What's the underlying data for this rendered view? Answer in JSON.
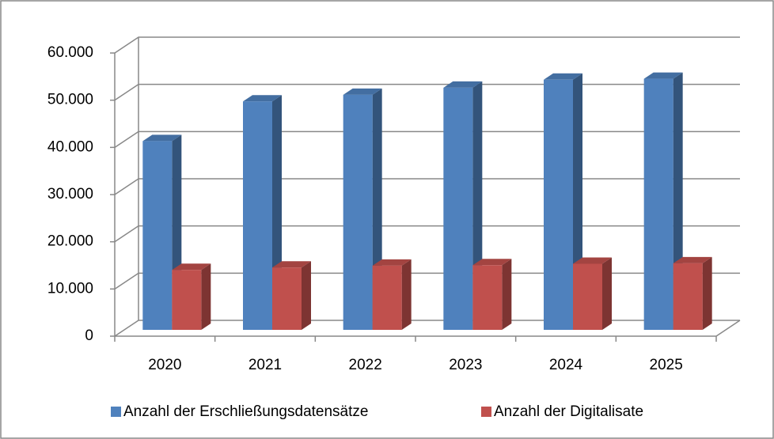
{
  "chart_data": {
    "type": "bar3d",
    "categories": [
      "2020",
      "2021",
      "2022",
      "2023",
      "2024",
      "2025"
    ],
    "series": [
      {
        "name": "Anzahl der Erschließungsdatensätze",
        "color": "#4f81bd",
        "values": [
          40000,
          48400,
          49800,
          51300,
          53000,
          53200
        ]
      },
      {
        "name": "Anzahl der Digitalisate",
        "color": "#c0504d",
        "values": [
          12700,
          13200,
          13600,
          13700,
          14000,
          14100
        ]
      }
    ],
    "ylim": [
      0,
      60000
    ],
    "yticks": [
      0,
      {
        "value": 10000,
        "label": "10.000"
      },
      {
        "value": 20000,
        "label": "20.000"
      },
      {
        "value": 30000,
        "label": "30.000"
      },
      {
        "value": 40000,
        "label": "40.000"
      },
      {
        "value": 50000,
        "label": "50.000"
      },
      {
        "value": 60000,
        "label": "60.000"
      }
    ],
    "grid": true,
    "legend": "bottom"
  }
}
